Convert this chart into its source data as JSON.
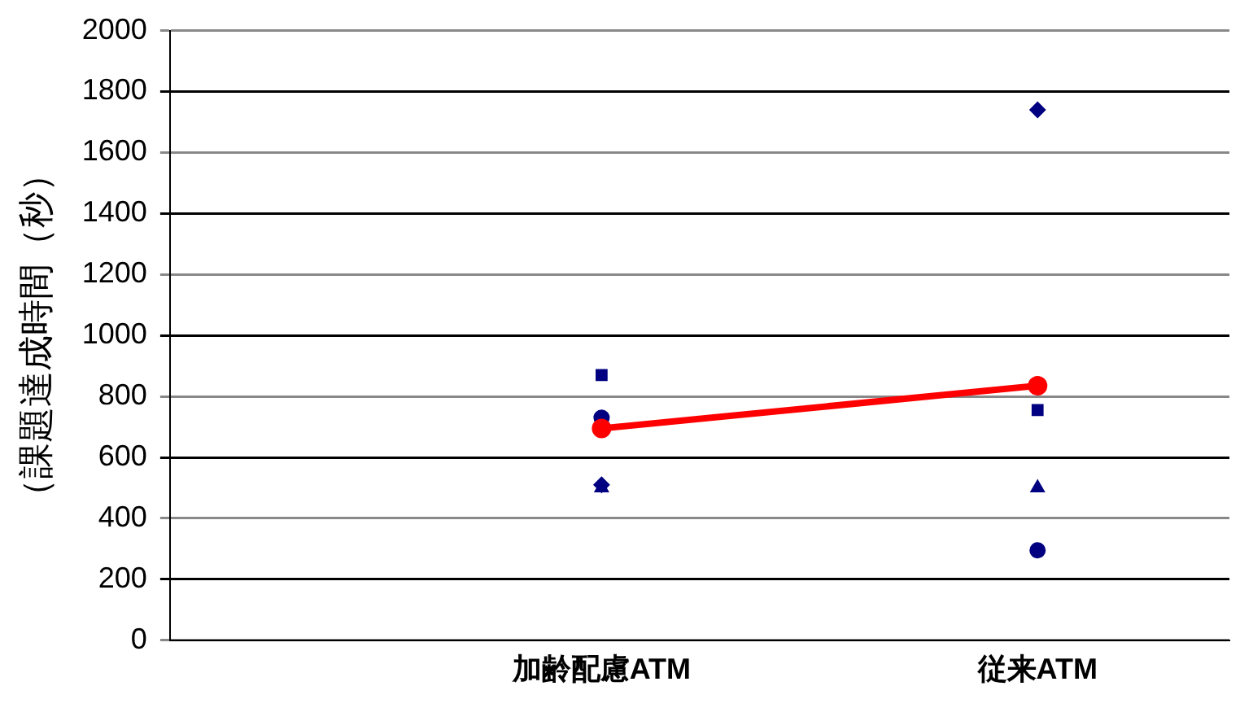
{
  "chart_data": {
    "type": "scatter",
    "ylabel": "（課題達成時間（秒）",
    "categories": [
      "加齢配慮ATM",
      "従来ATM"
    ],
    "series": [
      {
        "color": "#000080",
        "marker": "diamond",
        "values": [
          510,
          1740
        ]
      },
      {
        "color": "#000080",
        "marker": "square",
        "values": [
          870,
          755
        ]
      },
      {
        "color": "#000080",
        "marker": "triangle",
        "values": [
          500,
          500
        ]
      },
      {
        "color": "#000080",
        "marker": "circle",
        "values": [
          730,
          295
        ]
      },
      {
        "type": "line",
        "color": "#ff0000",
        "marker": "circle",
        "values": [
          695,
          835
        ]
      }
    ],
    "ylim": [
      0,
      2000
    ],
    "yticks": [
      0,
      200,
      400,
      600,
      800,
      1000,
      1200,
      1400,
      1600,
      1800,
      2000
    ],
    "grid": "y",
    "legend": false
  }
}
